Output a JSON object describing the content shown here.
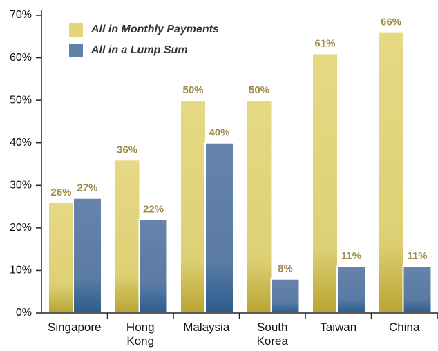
{
  "chart_data": {
    "type": "bar",
    "categories": [
      "Singapore",
      "Hong Kong",
      "Malaysia",
      "South Korea",
      "Taiwan",
      "China"
    ],
    "series": [
      {
        "name": "All in Monthly Payments",
        "color": "#e3d57a",
        "values": [
          26,
          36,
          50,
          50,
          61,
          66
        ],
        "value_labels": [
          "26%",
          "36%",
          "50%",
          "50%",
          "61%",
          "66%"
        ]
      },
      {
        "name": "All in a Lump Sum",
        "color": "#5f80a8",
        "values": [
          27,
          22,
          40,
          8,
          11,
          11
        ],
        "value_labels": [
          "27%",
          "22%",
          "40%",
          "8%",
          "11%",
          "11%"
        ]
      }
    ],
    "ylim": [
      0,
      70
    ],
    "yticks": [
      {
        "value": 0,
        "label": "0%"
      },
      {
        "value": 10,
        "label": "10%"
      },
      {
        "value": 20,
        "label": "20%"
      },
      {
        "value": 30,
        "label": "30%"
      },
      {
        "value": 40,
        "label": "40%"
      },
      {
        "value": 50,
        "label": "50%"
      },
      {
        "value": 60,
        "label": "60%"
      },
      {
        "value": 70,
        "label": "70%"
      }
    ],
    "legend": "top-left"
  }
}
